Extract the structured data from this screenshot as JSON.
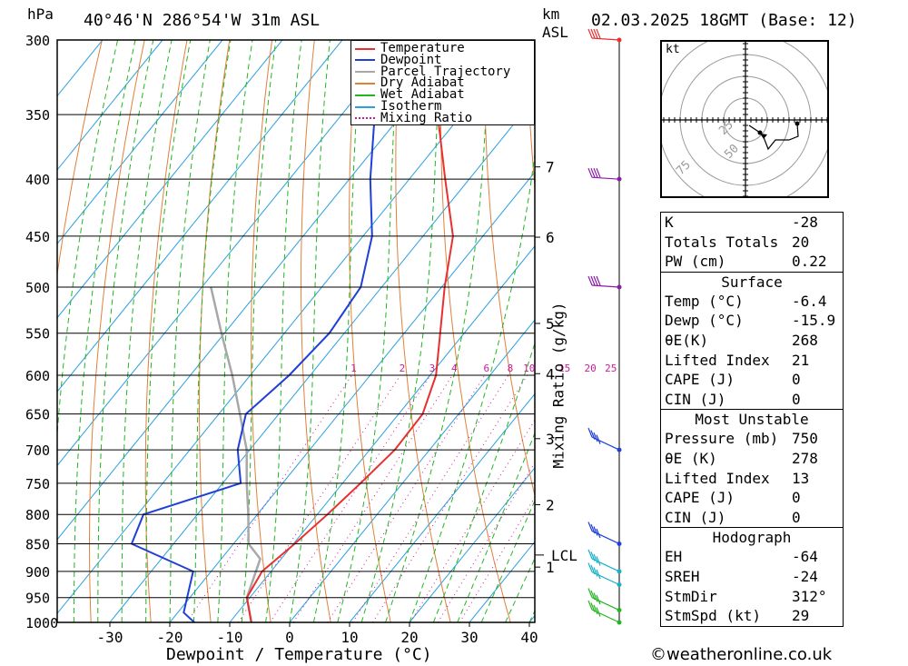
{
  "header": {
    "pressure_unit": "hPa",
    "location": "40°46'N  286°54'W  31m  ASL",
    "km_unit": "km",
    "asl_label": "ASL",
    "datetime": "02.03.2025  18GMT  (Base: 12)"
  },
  "chart_data": {
    "type": "line",
    "chart_kind": "Skew-T log-P sounding",
    "xlabel": "Dewpoint / Temperature (°C)",
    "ylabel": "hPa",
    "xlim": [
      -40,
      40
    ],
    "ylim": [
      1000,
      300
    ],
    "y_scale": "log",
    "x_ticks": [
      -30,
      -20,
      -10,
      0,
      10,
      20,
      30,
      40
    ],
    "pressure_levels": [
      300,
      350,
      400,
      450,
      500,
      550,
      600,
      650,
      700,
      750,
      800,
      850,
      900,
      950,
      1000
    ],
    "legend": [
      "Temperature",
      "Dewpoint",
      "Parcel Trajectory",
      "Dry Adiabat",
      "Wet Adiabat",
      "Isotherm",
      "Mixing Ratio"
    ],
    "legend_location": "top-right",
    "colors": {
      "temperature": "#e83030",
      "dewpoint": "#1f3fd8",
      "parcel": "#a8a8a8",
      "dry_adiabat": "#e0803a",
      "wet_adiabat": "#22b522",
      "isotherm": "#2aa0e0",
      "mixing_ratio": "#d0189a"
    },
    "series": [
      {
        "name": "Temperature",
        "x": [
          -6.4,
          -10.5,
          -11.5,
          -9.8,
          -8.3,
          -7.0,
          -5.8,
          -6.0,
          -9.0,
          -14.0,
          -19.5,
          -25.0,
          -34.0,
          -44.0,
          -48.0,
          -50.0
        ],
        "y": [
          1000,
          950,
          900,
          850,
          800,
          750,
          700,
          650,
          600,
          550,
          500,
          450,
          400,
          350,
          320,
          300
        ]
      },
      {
        "name": "Dewpoint",
        "x": [
          -15.9,
          -19.0,
          -23.0,
          -37.0,
          -39.0,
          -27.0,
          -32.0,
          -35.5,
          -33.5,
          -32.5,
          -33.5,
          -38.5,
          -46.5,
          -54.5,
          -58.0,
          -60.0
        ],
        "y": [
          1000,
          980,
          900,
          850,
          800,
          750,
          700,
          650,
          600,
          550,
          500,
          450,
          400,
          350,
          320,
          300
        ]
      },
      {
        "name": "Parcel Trajectory",
        "x": [
          -6.4,
          -10.5,
          -13.5,
          -17.5,
          -21.5,
          -26.0,
          -30.5,
          -36.5,
          -43.0,
          -50.5,
          -58.5
        ],
        "y": [
          1000,
          950,
          877,
          850,
          800,
          750,
          700,
          650,
          600,
          550,
          500
        ]
      }
    ],
    "mixing_ratio_labels": [
      "1",
      "2",
      "3",
      "4",
      "6",
      "8",
      "10",
      "15",
      "20",
      "25"
    ],
    "mixing_ratio_values": [
      1,
      2,
      3,
      4,
      6,
      8,
      10,
      15,
      20,
      25
    ],
    "mixing_ratio_axis_label": "Mixing Ratio (g/kg)",
    "km_ticks": [
      {
        "label": "7",
        "pressure": 390
      },
      {
        "label": "6",
        "pressure": 451
      },
      {
        "label": "5",
        "pressure": 539
      },
      {
        "label": "4",
        "pressure": 598
      },
      {
        "label": "3",
        "pressure": 684
      },
      {
        "label": "2",
        "pressure": 784
      },
      {
        "label": "1",
        "pressure": 892
      }
    ],
    "lcl_label": "LCL",
    "lcl_pressure": 870,
    "wind_barb_levels": [
      300,
      400,
      500,
      700,
      850,
      900,
      925,
      975,
      1000
    ]
  },
  "hodograph": {
    "unit_label": "kt",
    "ring_labels": [
      "25",
      "50",
      "75"
    ]
  },
  "indices": {
    "basic": [
      {
        "label": "K",
        "value": "-28"
      },
      {
        "label": "Totals Totals",
        "value": "20"
      },
      {
        "label": "PW (cm)",
        "value": "0.22"
      }
    ],
    "surface": {
      "title": "Surface",
      "rows": [
        {
          "label": "Temp (°C)",
          "value": "-6.4"
        },
        {
          "label": "Dewp (°C)",
          "value": "-15.9"
        },
        {
          "label": "θE(K)",
          "value": "268"
        },
        {
          "label": "Lifted Index",
          "value": "21"
        },
        {
          "label": "CAPE (J)",
          "value": "0"
        },
        {
          "label": "CIN (J)",
          "value": "0"
        }
      ]
    },
    "most_unstable": {
      "title": "Most Unstable",
      "rows": [
        {
          "label": "Pressure (mb)",
          "value": "750"
        },
        {
          "label": "θE (K)",
          "value": "278"
        },
        {
          "label": "Lifted Index",
          "value": "13"
        },
        {
          "label": "CAPE (J)",
          "value": "0"
        },
        {
          "label": "CIN (J)",
          "value": "0"
        }
      ]
    },
    "hodograph": {
      "title": "Hodograph",
      "rows": [
        {
          "label": "EH",
          "value": "-64"
        },
        {
          "label": "SREH",
          "value": "-24"
        },
        {
          "label": "StmDir",
          "value": "312°"
        },
        {
          "label": "StmSpd (kt)",
          "value": "29"
        }
      ]
    }
  },
  "copyright": "©weatheronline.co.uk"
}
